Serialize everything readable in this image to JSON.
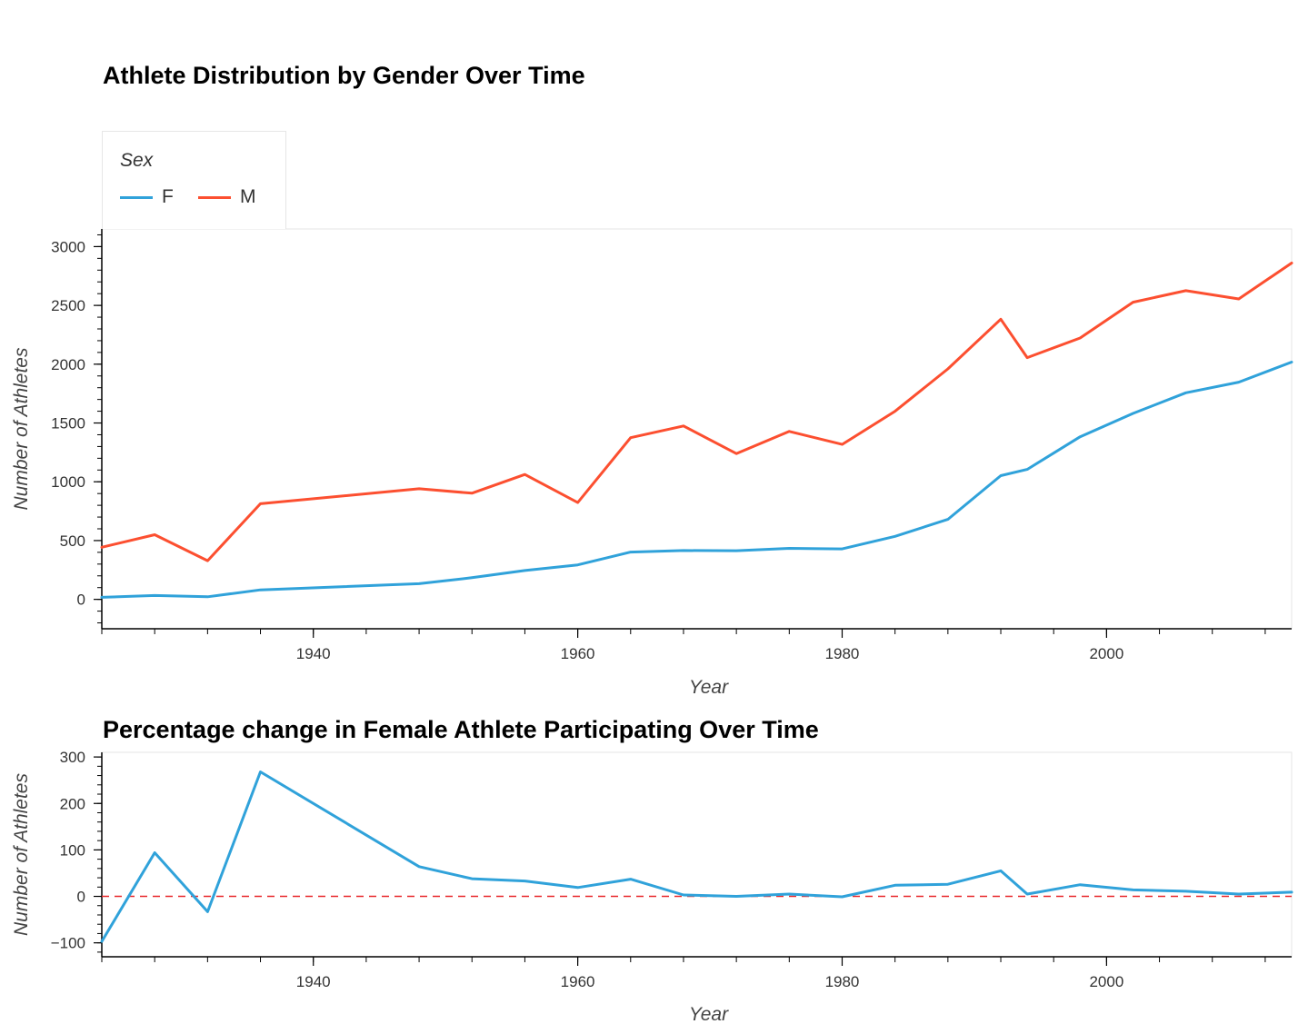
{
  "chart_data": [
    {
      "type": "line",
      "title": "Athlete Distribution by Gender Over Time",
      "xlabel": "Year",
      "ylabel": "Number of Athletes",
      "xlim": [
        1924,
        2014
      ],
      "ylim": [
        -250,
        3150
      ],
      "xticks": [
        1940,
        1960,
        1980,
        2000
      ],
      "yticks": [
        0,
        500,
        1000,
        1500,
        2000,
        2500,
        3000
      ],
      "legend": {
        "title": "Sex",
        "placement": "top-left, outside above plot"
      },
      "grid": false,
      "series": [
        {
          "name": "F",
          "color": "#30a2da",
          "x": [
            1924,
            1928,
            1932,
            1936,
            1948,
            1952,
            1956,
            1960,
            1964,
            1968,
            1972,
            1976,
            1980,
            1984,
            1988,
            1992,
            1994,
            1998,
            2002,
            2006,
            2010,
            2014
          ],
          "y": [
            17,
            33,
            22,
            81,
            133,
            184,
            245,
            293,
            402,
            415,
            414,
            434,
            429,
            536,
            680,
            1052,
            1105,
            1383,
            1581,
            1757,
            1847,
            2018
          ]
        },
        {
          "name": "M",
          "color": "#fc4f30",
          "x": [
            1924,
            1928,
            1932,
            1936,
            1948,
            1952,
            1956,
            1960,
            1964,
            1968,
            1972,
            1976,
            1980,
            1984,
            1988,
            1992,
            1994,
            1998,
            2002,
            2006,
            2010,
            2014
          ],
          "y": [
            443,
            550,
            329,
            813,
            941,
            903,
            1062,
            823,
            1375,
            1475,
            1240,
            1428,
            1318,
            1600,
            1960,
            2383,
            2056,
            2223,
            2527,
            2625,
            2555,
            2860
          ]
        }
      ]
    },
    {
      "type": "line",
      "title": "Percentage change in Female Athlete Participating Over Time",
      "xlabel": "Year",
      "ylabel": "Number of Athletes",
      "xlim": [
        1924,
        2014
      ],
      "ylim": [
        -130,
        310
      ],
      "xticks": [
        1940,
        1960,
        1980,
        2000
      ],
      "yticks": [
        -100,
        0,
        100,
        200,
        300
      ],
      "grid": false,
      "reference_line": {
        "y": 0,
        "color": "#e8282b",
        "style": "dashed"
      },
      "series": [
        {
          "color": "#30a2da",
          "x": [
            1924,
            1928,
            1932,
            1936,
            1948,
            1952,
            1956,
            1960,
            1964,
            1968,
            1972,
            1976,
            1980,
            1984,
            1988,
            1992,
            1994,
            1998,
            2002,
            2006,
            2010,
            2014
          ],
          "y": [
            -97,
            94,
            -33,
            268,
            64,
            38,
            33,
            19,
            37,
            3,
            0,
            5,
            -1,
            24,
            26,
            55,
            5,
            25,
            14,
            11,
            5,
            9
          ]
        }
      ]
    }
  ]
}
